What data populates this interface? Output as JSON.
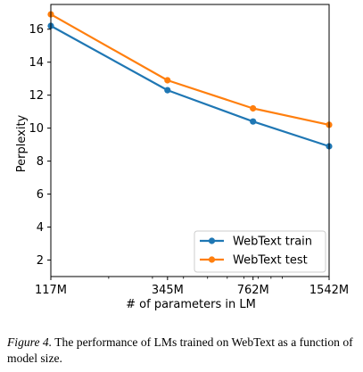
{
  "chart_data": {
    "type": "line",
    "xlabel": "# of parameters in LM",
    "ylabel": "Perplexity",
    "categories": [
      "117M",
      "345M",
      "762M",
      "1542M"
    ],
    "x_values": [
      117,
      345,
      762,
      1542
    ],
    "x_scale": "log",
    "xlim": [
      117,
      1542
    ],
    "ylim": [
      1,
      17.5
    ],
    "yticks": [
      2,
      4,
      6,
      8,
      10,
      12,
      14,
      16
    ],
    "grid": false,
    "legend_position": "lower-right",
    "series": [
      {
        "name": "WebText train",
        "color": "#1f77b4",
        "values": [
          16.2,
          12.3,
          10.4,
          8.9
        ]
      },
      {
        "name": "WebText test",
        "color": "#ff7f0e",
        "values": [
          16.9,
          12.9,
          11.2,
          10.2
        ]
      }
    ]
  },
  "caption": {
    "label": "Figure 4.",
    "text": " The performance of LMs trained on WebText as a function of model size."
  }
}
